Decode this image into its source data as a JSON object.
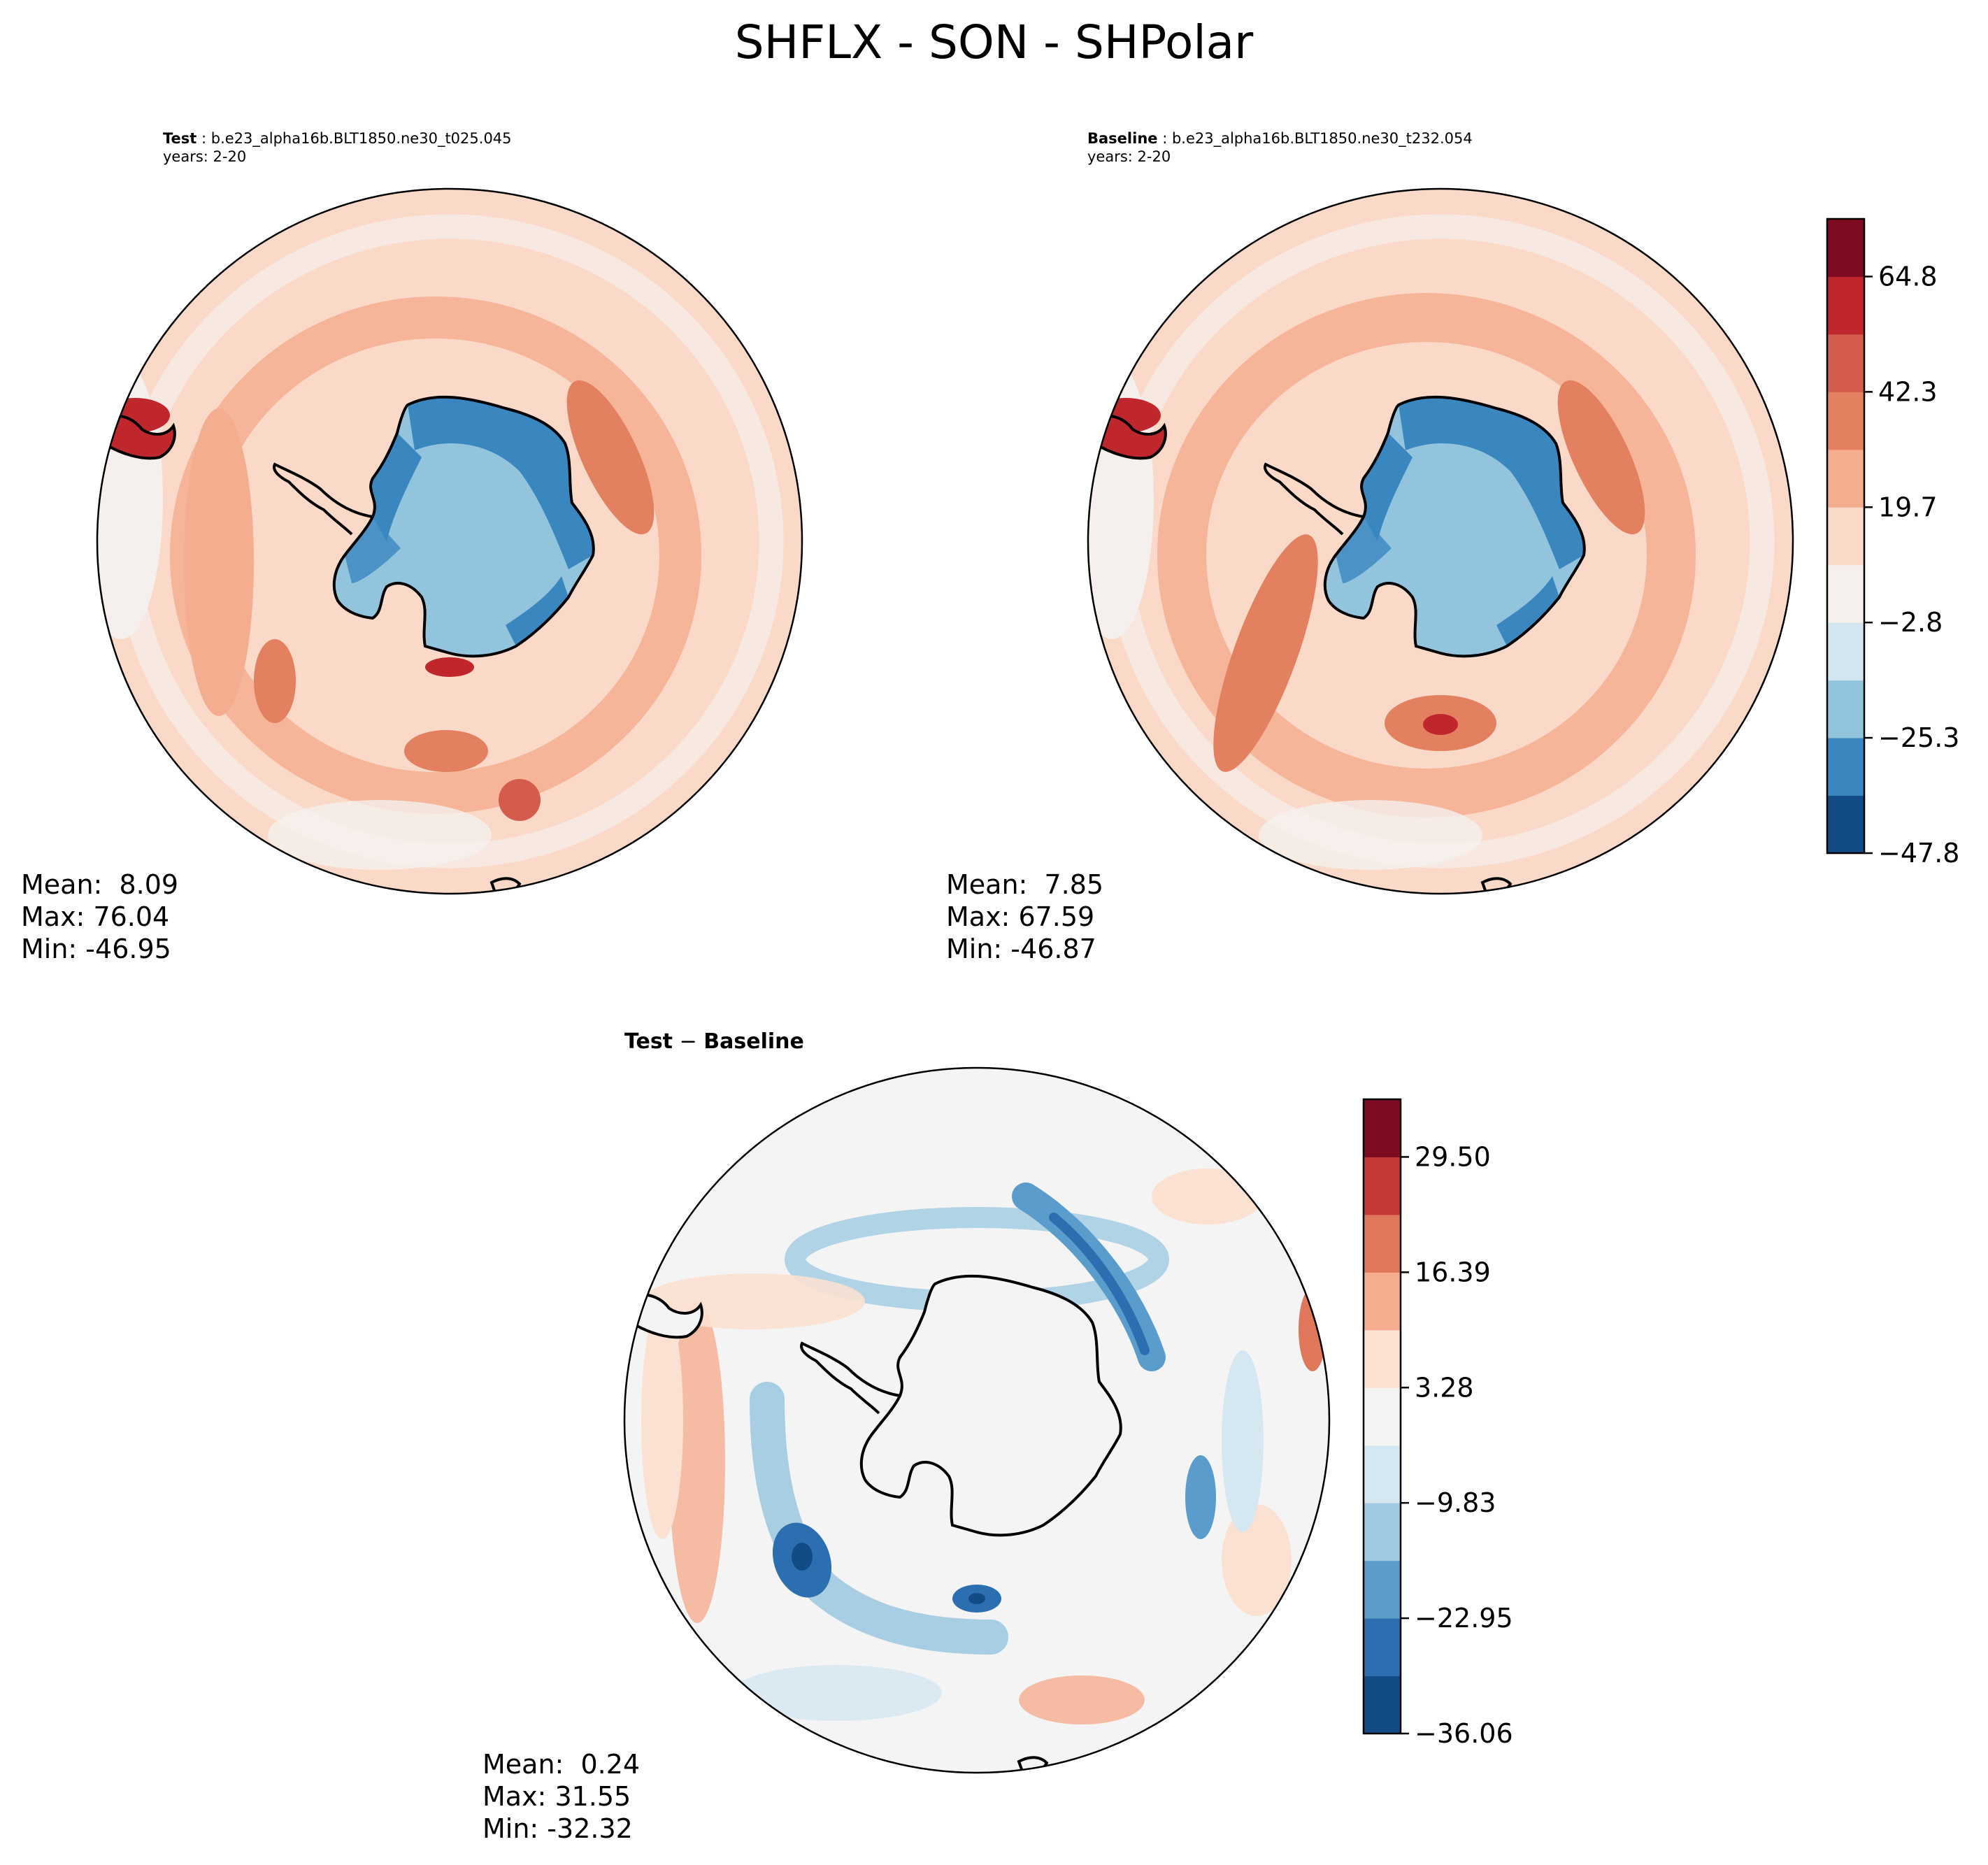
{
  "figure_title": "SHFLX - SON - SHPolar",
  "test_panel": {
    "label_bold": "Test",
    "case_name": " : b.e23_alpha16b.BLT1850.ne30_t025.045",
    "years": "years: 2-20",
    "mean": "Mean:  8.09",
    "max": "Max: 76.04",
    "min": "Min: -46.95"
  },
  "baseline_panel": {
    "label_bold": "Baseline",
    "case_name": " : b.e23_alpha16b.BLT1850.ne30_t232.054",
    "years": "years: 2-20",
    "mean": "Mean:  7.85",
    "max": "Max: 67.59",
    "min": "Min: -46.87"
  },
  "diff_panel": {
    "title_test": "Test",
    "title_sep": " − ",
    "title_baseline": "Baseline",
    "mean": "Mean:  0.24",
    "max": "Max: 31.55",
    "min": "Min: -32.32"
  },
  "chart_data": [
    {
      "type": "heatmap",
      "title": "Test : b.e23_alpha16b.BLT1850.ne30_t025.045",
      "projection": "south polar stereographic",
      "variable": "SHFLX",
      "season": "SON",
      "stats": {
        "mean": 8.09,
        "max": 76.04,
        "min": -46.95
      },
      "colorbar": {
        "range": [
          -47.8,
          76.04
        ],
        "ticks": [
          -47.8,
          -25.3,
          -2.8,
          19.7,
          42.3,
          64.8
        ],
        "levels": [
          -47.8,
          -36.55,
          -25.3,
          -14.05,
          -2.8,
          8.45,
          19.7,
          31.0,
          42.3,
          53.55,
          64.8,
          76.04
        ]
      }
    },
    {
      "type": "heatmap",
      "title": "Baseline : b.e23_alpha16b.BLT1850.ne30_t232.054",
      "projection": "south polar stereographic",
      "variable": "SHFLX",
      "season": "SON",
      "stats": {
        "mean": 7.85,
        "max": 67.59,
        "min": -46.87
      },
      "colorbar": {
        "range": [
          -47.8,
          76.04
        ],
        "ticks": [
          -47.8,
          -25.3,
          -2.8,
          19.7,
          42.3,
          64.8
        ]
      }
    },
    {
      "type": "heatmap",
      "title": "Test − Baseline",
      "projection": "south polar stereographic",
      "stats": {
        "mean": 0.24,
        "max": 31.55,
        "min": -32.32
      },
      "colorbar": {
        "range": [
          -36.06,
          36.06
        ],
        "ticks": [
          -36.06,
          -22.95,
          -9.83,
          3.28,
          16.39,
          29.5
        ],
        "tick_labels": [
          "−36.06",
          "−22.95",
          "−9.83",
          "3.28",
          "16.39",
          "29.50"
        ]
      }
    }
  ],
  "colorbar_main": {
    "tick_labels": [
      "−47.8",
      "−25.3",
      "−2.8",
      "19.7",
      "42.3",
      "64.8"
    ],
    "colors": [
      "#134b87",
      "#3a87c0",
      "#93c4de",
      "#d3e6f0",
      "#f5f0ed",
      "#fbd9c8",
      "#f5ad8f",
      "#e2805f",
      "#d35c4d",
      "#c0272d",
      "#7f0b22"
    ]
  },
  "colorbar_diff": {
    "tick_labels": [
      "−36.06",
      "−22.95",
      "−9.83",
      "3.28",
      "16.39",
      "29.50"
    ],
    "colors": [
      "#134b87",
      "#2c6fb0",
      "#5a9dcc",
      "#9fcae1",
      "#d5e7f1",
      "#f4f4f4",
      "#fbe1d2",
      "#f5ad8f",
      "#e0765a",
      "#c53a37",
      "#7f0b22"
    ]
  }
}
